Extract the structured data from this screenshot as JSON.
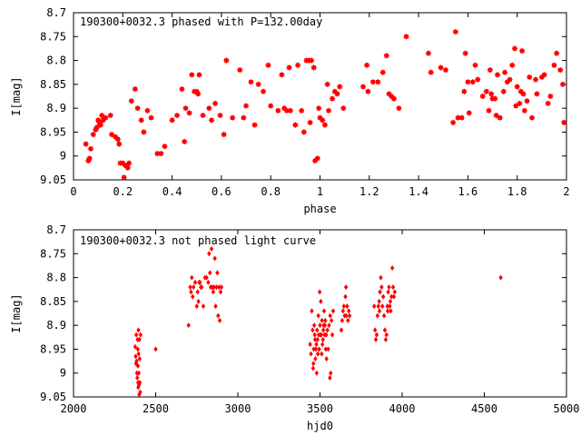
{
  "chart_data": [
    {
      "type": "scatter",
      "title": "190300+0032.3 phased with P=132.00day",
      "xlabel": "phase",
      "ylabel": "I[mag]",
      "xlim": [
        0,
        2
      ],
      "ylim": [
        9.05,
        8.7
      ],
      "y_inverted": true,
      "xticks": [
        "0",
        "0.2",
        "0.4",
        "0.6",
        "0.8",
        "1",
        "1.2",
        "1.4",
        "1.6",
        "1.8",
        "2"
      ],
      "yticks": [
        "8.7",
        "8.75",
        "8.8",
        "8.85",
        "8.9",
        "8.95",
        "9",
        "9.05"
      ],
      "grid": false,
      "marker": "star",
      "color": "#ff0000",
      "points": [
        [
          0.05,
          8.975
        ],
        [
          0.06,
          9.01
        ],
        [
          0.065,
          9.005
        ],
        [
          0.07,
          8.985
        ],
        [
          0.08,
          8.955
        ],
        [
          0.09,
          8.945
        ],
        [
          0.095,
          8.94
        ],
        [
          0.1,
          8.925
        ],
        [
          0.105,
          8.93
        ],
        [
          0.11,
          8.935
        ],
        [
          0.115,
          8.915
        ],
        [
          0.12,
          8.925
        ],
        [
          0.13,
          8.92
        ],
        [
          0.15,
          8.915
        ],
        [
          0.155,
          8.955
        ],
        [
          0.17,
          8.96
        ],
        [
          0.18,
          8.965
        ],
        [
          0.185,
          8.975
        ],
        [
          0.19,
          9.015
        ],
        [
          0.2,
          9.015
        ],
        [
          0.205,
          9.045
        ],
        [
          0.21,
          9.02
        ],
        [
          0.215,
          9.02
        ],
        [
          0.22,
          9.025
        ],
        [
          0.225,
          9.015
        ],
        [
          0.235,
          8.885
        ],
        [
          0.25,
          8.86
        ],
        [
          0.26,
          8.9
        ],
        [
          0.275,
          8.925
        ],
        [
          0.285,
          8.95
        ],
        [
          0.3,
          8.905
        ],
        [
          0.315,
          8.92
        ],
        [
          0.34,
          8.995
        ],
        [
          0.355,
          8.995
        ],
        [
          0.37,
          8.98
        ],
        [
          0.4,
          8.925
        ],
        [
          0.42,
          8.915
        ],
        [
          0.44,
          8.86
        ],
        [
          0.45,
          8.97
        ],
        [
          0.455,
          8.9
        ],
        [
          0.47,
          8.91
        ],
        [
          0.48,
          8.83
        ],
        [
          0.49,
          8.865
        ],
        [
          0.5,
          8.865
        ],
        [
          0.505,
          8.87
        ],
        [
          0.51,
          8.83
        ],
        [
          0.525,
          8.915
        ],
        [
          0.55,
          8.9
        ],
        [
          0.56,
          8.925
        ],
        [
          0.575,
          8.89
        ],
        [
          0.595,
          8.915
        ],
        [
          0.61,
          8.955
        ],
        [
          0.62,
          8.8
        ],
        [
          0.645,
          8.92
        ],
        [
          0.675,
          8.82
        ],
        [
          0.69,
          8.92
        ],
        [
          0.7,
          8.895
        ],
        [
          0.72,
          8.845
        ],
        [
          0.735,
          8.935
        ],
        [
          0.75,
          8.85
        ],
        [
          0.77,
          8.865
        ],
        [
          0.79,
          8.81
        ],
        [
          0.8,
          8.895
        ],
        [
          0.83,
          8.905
        ],
        [
          0.845,
          8.83
        ],
        [
          0.855,
          8.9
        ],
        [
          0.865,
          8.905
        ],
        [
          0.875,
          8.815
        ],
        [
          0.88,
          8.905
        ],
        [
          0.9,
          8.935
        ],
        [
          0.91,
          8.81
        ],
        [
          0.925,
          8.905
        ],
        [
          0.935,
          8.95
        ],
        [
          0.945,
          8.8
        ],
        [
          0.955,
          8.8
        ],
        [
          0.96,
          8.93
        ],
        [
          0.965,
          8.8
        ],
        [
          0.975,
          8.815
        ],
        [
          0.98,
          9.01
        ],
        [
          0.99,
          9.005
        ],
        [
          0.995,
          8.9
        ],
        [
          1.0,
          8.92
        ],
        [
          1.01,
          8.925
        ],
        [
          1.02,
          8.935
        ],
        [
          1.03,
          8.85
        ],
        [
          1.035,
          8.905
        ],
        [
          1.05,
          8.88
        ],
        [
          1.06,
          8.865
        ],
        [
          1.07,
          8.87
        ],
        [
          1.08,
          8.855
        ],
        [
          1.095,
          8.9
        ],
        [
          1.175,
          8.855
        ],
        [
          1.19,
          8.81
        ],
        [
          1.195,
          8.865
        ],
        [
          1.215,
          8.845
        ],
        [
          1.235,
          8.845
        ],
        [
          1.255,
          8.825
        ],
        [
          1.27,
          8.79
        ],
        [
          1.28,
          8.87
        ],
        [
          1.29,
          8.875
        ],
        [
          1.3,
          8.88
        ],
        [
          1.32,
          8.9
        ],
        [
          1.35,
          8.75
        ],
        [
          1.44,
          8.785
        ],
        [
          1.45,
          8.825
        ],
        [
          1.49,
          8.815
        ],
        [
          1.51,
          8.82
        ],
        [
          1.54,
          8.93
        ],
        [
          1.55,
          8.74
        ],
        [
          1.56,
          8.92
        ],
        [
          1.575,
          8.92
        ],
        [
          1.585,
          8.865
        ],
        [
          1.59,
          8.785
        ],
        [
          1.6,
          8.845
        ],
        [
          1.605,
          8.91
        ],
        [
          1.62,
          8.845
        ],
        [
          1.63,
          8.81
        ],
        [
          1.64,
          8.84
        ],
        [
          1.66,
          8.875
        ],
        [
          1.675,
          8.865
        ],
        [
          1.685,
          8.905
        ],
        [
          1.69,
          8.82
        ],
        [
          1.695,
          8.87
        ],
        [
          1.7,
          8.88
        ],
        [
          1.71,
          8.88
        ],
        [
          1.715,
          8.915
        ],
        [
          1.72,
          8.83
        ],
        [
          1.73,
          8.92
        ],
        [
          1.745,
          8.865
        ],
        [
          1.75,
          8.825
        ],
        [
          1.76,
          8.845
        ],
        [
          1.77,
          8.84
        ],
        [
          1.78,
          8.81
        ],
        [
          1.79,
          8.775
        ],
        [
          1.795,
          8.895
        ],
        [
          1.8,
          8.855
        ],
        [
          1.81,
          8.89
        ],
        [
          1.815,
          8.865
        ],
        [
          1.82,
          8.78
        ],
        [
          1.825,
          8.87
        ],
        [
          1.83,
          8.905
        ],
        [
          1.84,
          8.885
        ],
        [
          1.85,
          8.835
        ],
        [
          1.86,
          8.92
        ],
        [
          1.875,
          8.84
        ],
        [
          1.88,
          8.87
        ],
        [
          1.9,
          8.835
        ],
        [
          1.91,
          8.83
        ],
        [
          1.925,
          8.89
        ],
        [
          1.935,
          8.875
        ],
        [
          1.95,
          8.81
        ],
        [
          1.96,
          8.785
        ],
        [
          1.975,
          8.82
        ],
        [
          1.985,
          8.85
        ],
        [
          1.99,
          8.93
        ]
      ]
    },
    {
      "type": "scatter",
      "title": "190300+0032.3 not phased light curve",
      "xlabel": "hjd0",
      "ylabel": "I[mag]",
      "xlim": [
        2000,
        5000
      ],
      "ylim": [
        9.05,
        8.7
      ],
      "y_inverted": true,
      "xticks": [
        "2000",
        "2500",
        "3000",
        "3500",
        "4000",
        "4500",
        "5000"
      ],
      "yticks": [
        "8.7",
        "8.75",
        "8.8",
        "8.85",
        "8.9",
        "8.95",
        "9",
        "9.05"
      ],
      "grid": false,
      "marker": "diamond",
      "color": "#ff0000",
      "points": [
        [
          2375,
          8.945
        ],
        [
          2378,
          8.965
        ],
        [
          2380,
          8.98
        ],
        [
          2382,
          8.92
        ],
        [
          2384,
          8.975
        ],
        [
          2386,
          9.0
        ],
        [
          2388,
          9.01
        ],
        [
          2390,
          8.93
        ],
        [
          2391,
          8.95
        ],
        [
          2392,
          8.985
        ],
        [
          2393,
          9.02
        ],
        [
          2394,
          9.03
        ],
        [
          2395,
          8.91
        ],
        [
          2396,
          8.96
        ],
        [
          2397,
          9.0
        ],
        [
          2398,
          9.025
        ],
        [
          2400,
          9.045
        ],
        [
          2401,
          8.93
        ],
        [
          2402,
          8.97
        ],
        [
          2404,
          9.02
        ],
        [
          2406,
          9.04
        ],
        [
          2408,
          8.92
        ],
        [
          2500,
          8.95
        ],
        [
          2700,
          8.9
        ],
        [
          2710,
          8.82
        ],
        [
          2715,
          8.83
        ],
        [
          2720,
          8.8
        ],
        [
          2725,
          8.84
        ],
        [
          2730,
          8.82
        ],
        [
          2740,
          8.81
        ],
        [
          2750,
          8.86
        ],
        [
          2755,
          8.83
        ],
        [
          2760,
          8.85
        ],
        [
          2765,
          8.81
        ],
        [
          2770,
          8.81
        ],
        [
          2775,
          8.82
        ],
        [
          2780,
          8.82
        ],
        [
          2790,
          8.86
        ],
        [
          2800,
          8.8
        ],
        [
          2810,
          8.8
        ],
        [
          2820,
          8.81
        ],
        [
          2825,
          8.75
        ],
        [
          2830,
          8.79
        ],
        [
          2835,
          8.82
        ],
        [
          2840,
          8.74
        ],
        [
          2845,
          8.82
        ],
        [
          2850,
          8.83
        ],
        [
          2855,
          8.82
        ],
        [
          2860,
          8.76
        ],
        [
          2865,
          8.86
        ],
        [
          2870,
          8.82
        ],
        [
          2875,
          8.79
        ],
        [
          2880,
          8.88
        ],
        [
          2885,
          8.82
        ],
        [
          2890,
          8.89
        ],
        [
          2895,
          8.83
        ],
        [
          2900,
          8.82
        ],
        [
          3440,
          8.94
        ],
        [
          3445,
          8.96
        ],
        [
          3450,
          8.87
        ],
        [
          3455,
          8.91
        ],
        [
          3458,
          8.99
        ],
        [
          3460,
          8.98
        ],
        [
          3462,
          8.95
        ],
        [
          3465,
          8.9
        ],
        [
          3468,
          8.92
        ],
        [
          3470,
          8.93
        ],
        [
          3472,
          8.97
        ],
        [
          3475,
          8.95
        ],
        [
          3478,
          8.94
        ],
        [
          3480,
          9.0
        ],
        [
          3482,
          8.91
        ],
        [
          3485,
          8.93
        ],
        [
          3487,
          8.96
        ],
        [
          3490,
          8.88
        ],
        [
          3492,
          8.92
        ],
        [
          3495,
          8.95
        ],
        [
          3498,
          8.83
        ],
        [
          3500,
          8.9
        ],
        [
          3503,
          8.92
        ],
        [
          3505,
          8.85
        ],
        [
          3508,
          8.92
        ],
        [
          3510,
          8.96
        ],
        [
          3512,
          8.89
        ],
        [
          3515,
          8.94
        ],
        [
          3518,
          8.93
        ],
        [
          3520,
          8.91
        ],
        [
          3522,
          8.9
        ],
        [
          3525,
          8.87
        ],
        [
          3528,
          8.92
        ],
        [
          3530,
          8.9
        ],
        [
          3532,
          8.89
        ],
        [
          3535,
          8.95
        ],
        [
          3538,
          8.92
        ],
        [
          3540,
          8.97
        ],
        [
          3545,
          8.91
        ],
        [
          3550,
          8.95
        ],
        [
          3555,
          8.9
        ],
        [
          3560,
          9.01
        ],
        [
          3562,
          8.88
        ],
        [
          3565,
          9.0
        ],
        [
          3570,
          8.89
        ],
        [
          3575,
          8.92
        ],
        [
          3580,
          8.87
        ],
        [
          3630,
          8.91
        ],
        [
          3635,
          8.89
        ],
        [
          3640,
          8.87
        ],
        [
          3645,
          8.86
        ],
        [
          3650,
          8.88
        ],
        [
          3655,
          8.84
        ],
        [
          3658,
          8.82
        ],
        [
          3660,
          8.88
        ],
        [
          3665,
          8.86
        ],
        [
          3670,
          8.89
        ],
        [
          3675,
          8.87
        ],
        [
          3680,
          8.88
        ],
        [
          3830,
          8.86
        ],
        [
          3835,
          8.91
        ],
        [
          3840,
          8.93
        ],
        [
          3845,
          8.92
        ],
        [
          3850,
          8.88
        ],
        [
          3855,
          8.86
        ],
        [
          3860,
          8.85
        ],
        [
          3862,
          8.87
        ],
        [
          3865,
          8.83
        ],
        [
          3870,
          8.8
        ],
        [
          3875,
          8.82
        ],
        [
          3880,
          8.86
        ],
        [
          3885,
          8.84
        ],
        [
          3890,
          8.88
        ],
        [
          3895,
          8.91
        ],
        [
          3900,
          8.93
        ],
        [
          3905,
          8.92
        ],
        [
          3910,
          8.86
        ],
        [
          3912,
          8.87
        ],
        [
          3915,
          8.83
        ],
        [
          3920,
          8.82
        ],
        [
          3925,
          8.86
        ],
        [
          3928,
          8.85
        ],
        [
          3930,
          8.87
        ],
        [
          3935,
          8.84
        ],
        [
          3940,
          8.78
        ],
        [
          3945,
          8.82
        ],
        [
          3950,
          8.84
        ],
        [
          3955,
          8.83
        ],
        [
          4600,
          8.8
        ]
      ]
    }
  ]
}
